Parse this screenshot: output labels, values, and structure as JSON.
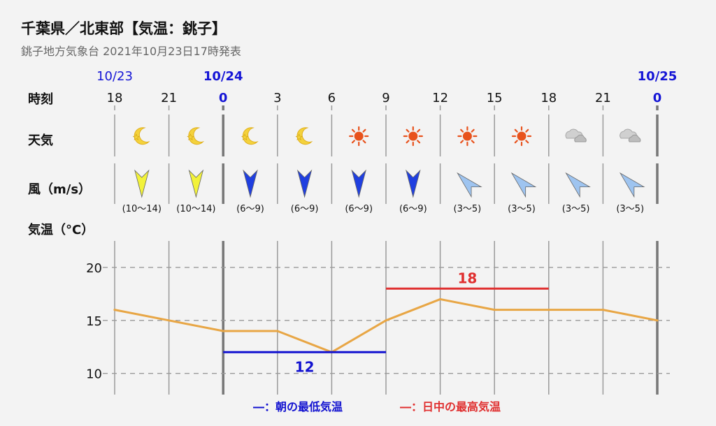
{
  "header": {
    "title": "千葉県／北東部【気温：銚子】",
    "subtitle": "銚子地方気象台 2021年10月23日17時発表"
  },
  "row_labels": {
    "time": "時刻",
    "weather": "天気",
    "wind": "風（m/s）",
    "temperature": "気温（°C）"
  },
  "dates": [
    "10/23",
    "10/24",
    "10/25"
  ],
  "hours": [
    "18",
    "21",
    "0",
    "3",
    "6",
    "9",
    "12",
    "15",
    "18",
    "21",
    "0"
  ],
  "weather_icons": [
    "moon-icon",
    "moon-icon",
    "moon-icon",
    "moon-icon",
    "sun-icon",
    "sun-icon",
    "sun-icon",
    "sun-icon",
    "cloud-icon",
    "cloud-icon"
  ],
  "wind": [
    {
      "speed": "(10〜14)",
      "direction": "N",
      "color": "#f2f23a"
    },
    {
      "speed": "(10〜14)",
      "direction": "N",
      "color": "#f2f23a"
    },
    {
      "speed": "(6〜9)",
      "direction": "N",
      "color": "#1f3fe0"
    },
    {
      "speed": "(6〜9)",
      "direction": "N",
      "color": "#1f3fe0"
    },
    {
      "speed": "(6〜9)",
      "direction": "N",
      "color": "#1f3fe0"
    },
    {
      "speed": "(6〜9)",
      "direction": "N",
      "color": "#1f3fe0"
    },
    {
      "speed": "(3〜5)",
      "direction": "NE",
      "color": "#9ec4f0"
    },
    {
      "speed": "(3〜5)",
      "direction": "NE",
      "color": "#9ec4f0"
    },
    {
      "speed": "(3〜5)",
      "direction": "NE",
      "color": "#9ec4f0"
    },
    {
      "speed": "(3〜5)",
      "direction": "NE",
      "color": "#9ec4f0"
    }
  ],
  "legend": {
    "min": "―：朝の最低気温",
    "max": "―：日中の最高気温"
  },
  "colors": {
    "line": "#e8a645",
    "min": "#1313d0",
    "max": "#e03030",
    "date": "#1515d6"
  },
  "chart_data": {
    "type": "line",
    "x": [
      "10/23 18",
      "10/23 21",
      "10/24 0",
      "10/24 3",
      "10/24 6",
      "10/24 9",
      "10/24 12",
      "10/24 15",
      "10/24 18",
      "10/24 21",
      "10/25 0"
    ],
    "series": [
      {
        "values": [
          16,
          15,
          14,
          14,
          12,
          15,
          17,
          16,
          16,
          16,
          15
        ]
      }
    ],
    "min_temp": {
      "value": 12,
      "label": "12",
      "from": "10/24 0",
      "to": "10/24 9"
    },
    "max_temp": {
      "value": 18,
      "label": "18",
      "from": "10/24 9",
      "to": "10/24 18"
    },
    "ylim": [
      8,
      22.5
    ],
    "yticks": [
      "20",
      "15",
      "10"
    ],
    "grid": true
  }
}
